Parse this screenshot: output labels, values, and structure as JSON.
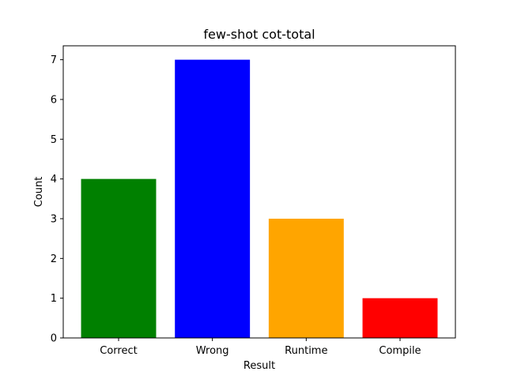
{
  "chart_data": {
    "type": "bar",
    "title": "few-shot cot-total",
    "xlabel": "Result",
    "ylabel": "Count",
    "categories": [
      "Correct",
      "Wrong",
      "Runtime",
      "Compile"
    ],
    "values": [
      4,
      7,
      3,
      1
    ],
    "colors": [
      "#008000",
      "#0000ff",
      "#ffa500",
      "#ff0000"
    ],
    "ylim": [
      0,
      7.35
    ],
    "yticks": [
      "0",
      "1",
      "2",
      "3",
      "4",
      "5",
      "6",
      "7"
    ],
    "grid": false,
    "legend": "none"
  }
}
